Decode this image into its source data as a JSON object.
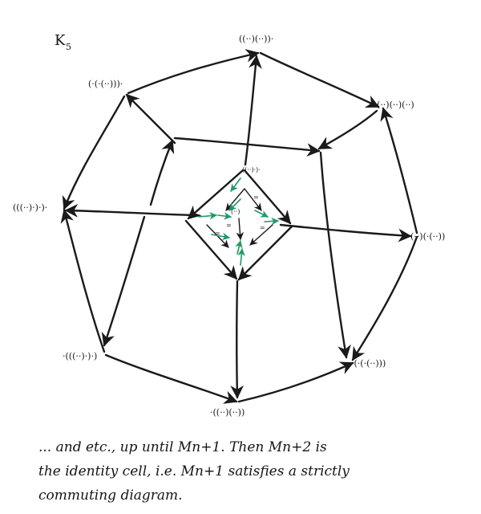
{
  "title": {
    "main": "K",
    "sub": "5"
  },
  "vertex_labels": {
    "top": "((··)(··))·",
    "top_left": "(·(·(··)))·",
    "top_right": "(··)(··)(··)",
    "left": "(((··)·)·)·",
    "right": "(··)(·(··))",
    "bottom_left": "·(((··)·)·)",
    "bottom_right": "·(·(·(··)))",
    "bottom": "·((··)(··))",
    "inner_top": "((··)·)·",
    "inner_mid": "(··)"
  },
  "note": {
    "line1": "... and etc., up until  Mn+1. Then  Mn+2  is",
    "line2": "the identity cell, i.e.  Mn+1 satisfies a strictly",
    "line3": "commuting diagram."
  },
  "colors": {
    "ink": "#1a1a1a",
    "green": "#1e9a66",
    "background": "#ffffff"
  }
}
